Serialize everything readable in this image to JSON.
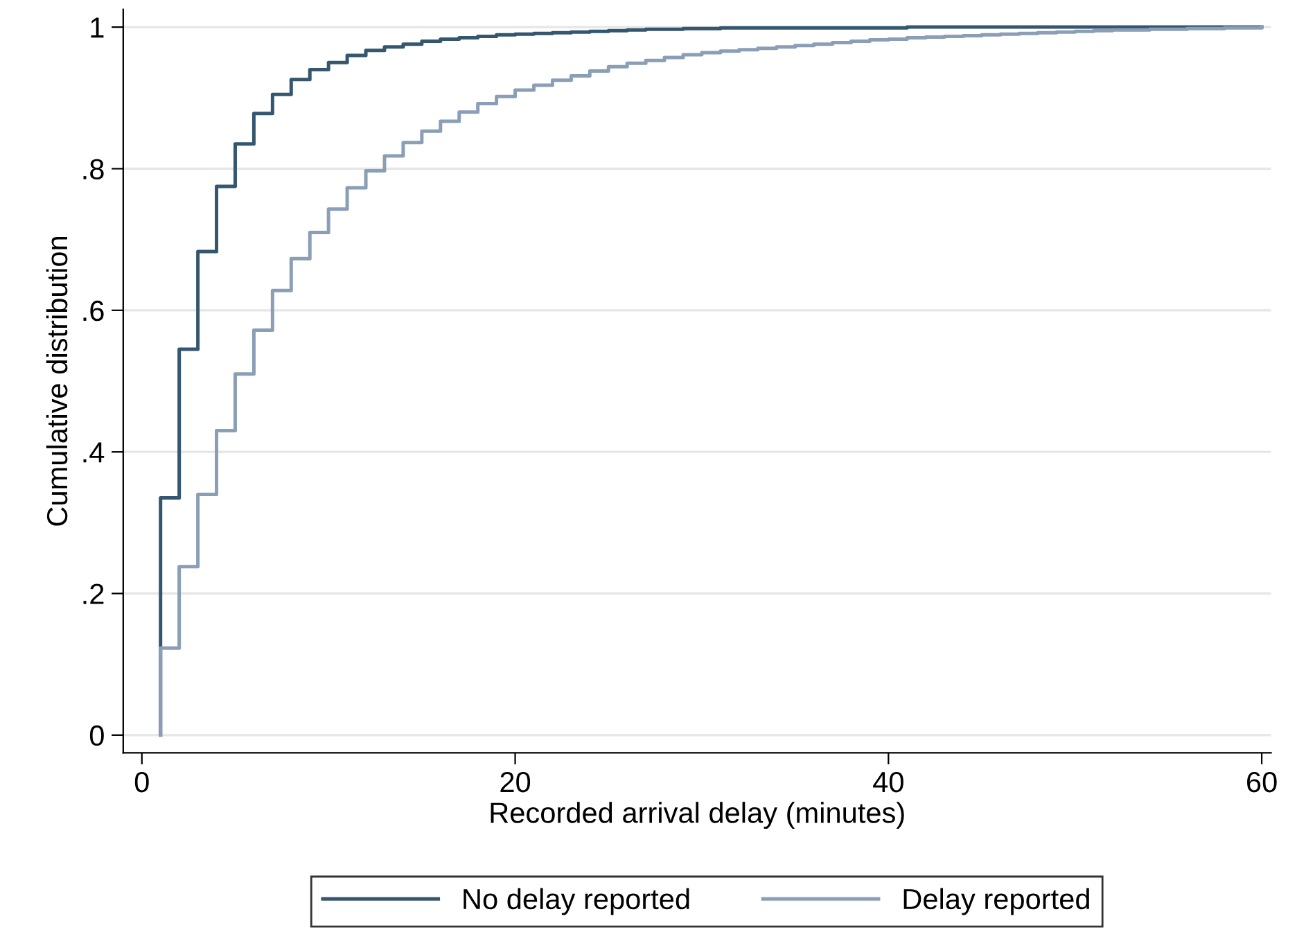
{
  "chart_data": {
    "type": "step",
    "xlabel": "Recorded arrival delay (minutes)",
    "ylabel": "Cumulative distribution",
    "x": [
      1,
      1,
      2,
      3,
      4,
      5,
      6,
      7,
      8,
      9,
      10,
      11,
      12,
      13,
      14,
      15,
      16,
      17,
      18,
      19,
      20,
      21,
      22,
      23,
      24,
      25,
      26,
      27,
      28,
      29,
      30,
      31,
      32,
      33,
      34,
      35,
      36,
      37,
      38,
      39,
      40,
      41,
      42,
      43,
      44,
      45,
      46,
      47,
      48,
      49,
      50,
      51,
      52,
      53,
      54,
      55,
      56,
      57,
      58,
      59,
      60
    ],
    "series": [
      {
        "name": "No delay reported",
        "color": "#34566f",
        "values": [
          0,
          0.335,
          0.545,
          0.683,
          0.775,
          0.835,
          0.878,
          0.905,
          0.926,
          0.94,
          0.95,
          0.96,
          0.967,
          0.972,
          0.976,
          0.98,
          0.983,
          0.985,
          0.987,
          0.989,
          0.99,
          0.991,
          0.992,
          0.993,
          0.994,
          0.995,
          0.996,
          0.997,
          0.997,
          0.998,
          0.998,
          0.999,
          0.999,
          0.999,
          0.999,
          0.999,
          0.999,
          0.999,
          0.999,
          0.999,
          0.999,
          1,
          1,
          1,
          1,
          1,
          1,
          1,
          1,
          1,
          1,
          1,
          1,
          1,
          1,
          1,
          1,
          1,
          1,
          1,
          1
        ]
      },
      {
        "name": "Delay reported",
        "color": "#8a9fb5",
        "values": [
          0,
          0.123,
          0.238,
          0.34,
          0.43,
          0.51,
          0.572,
          0.628,
          0.673,
          0.71,
          0.743,
          0.773,
          0.797,
          0.818,
          0.837,
          0.853,
          0.867,
          0.88,
          0.892,
          0.902,
          0.911,
          0.918,
          0.925,
          0.931,
          0.938,
          0.944,
          0.949,
          0.953,
          0.957,
          0.961,
          0.964,
          0.966,
          0.968,
          0.97,
          0.972,
          0.974,
          0.976,
          0.978,
          0.98,
          0.982,
          0.983,
          0.985,
          0.986,
          0.987,
          0.988,
          0.989,
          0.99,
          0.991,
          0.992,
          0.993,
          0.994,
          0.995,
          0.996,
          0.996,
          0.997,
          0.997,
          0.998,
          0.998,
          0.999,
          0.999,
          1
        ]
      }
    ],
    "xlim": [
      -1,
      60.5
    ],
    "xticks": [
      0,
      20,
      40,
      60
    ],
    "ylim": [
      -0.025,
      1.025
    ],
    "yticks": [
      0,
      {
        "value": 0.2,
        "label": ".2"
      },
      {
        "value": 0.4,
        "label": ".4"
      },
      {
        "value": 0.6,
        "label": ".6"
      },
      {
        "value": 0.8,
        "label": ".8"
      },
      1
    ],
    "grid": "y",
    "legend": "bottom"
  }
}
